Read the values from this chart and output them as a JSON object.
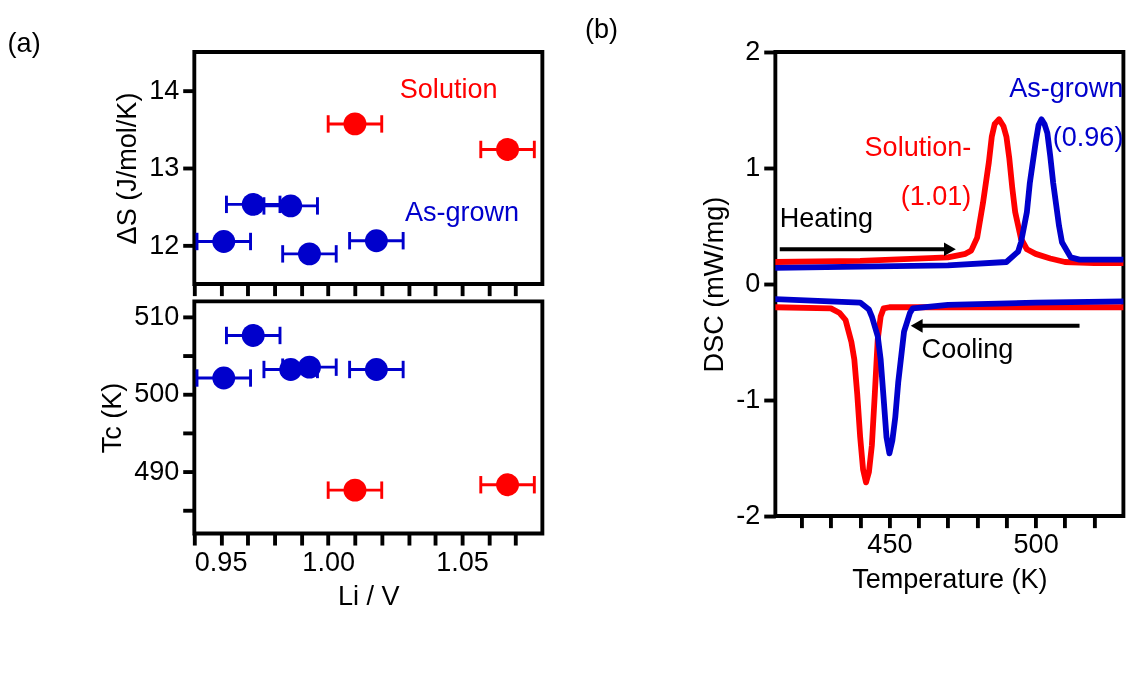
{
  "chart_data": [
    {
      "type": "scatter",
      "ylabel": "ΔS (J/mol/K)",
      "annotations": [
        "(a)"
      ],
      "marker": "circle",
      "legend": false,
      "grid": false,
      "tick_labels": "y",
      "xlim": [
        0.95,
        1.08
      ],
      "xticks": [
        0.95,
        0.96,
        0.97,
        0.98,
        0.99,
        1.0,
        1.01,
        1.02,
        1.03,
        1.04,
        1.05,
        1.06,
        1.07
      ],
      "ylim": [
        11.5,
        14.5
      ],
      "yticks": [
        12,
        13,
        14
      ],
      "series": [
        {
          "name": "Solution",
          "color": "#ff0000",
          "x": [
            1.01,
            1.067
          ],
          "values": [
            13.57,
            13.24
          ],
          "xerrors": [
            0.01,
            0.01
          ]
        },
        {
          "name": "As-grown",
          "color": "#0000cc",
          "x": [
            0.961,
            0.972,
            0.986,
            0.993,
            1.018
          ],
          "values": [
            12.05,
            12.53,
            12.51,
            11.89,
            12.06
          ],
          "xerrors": [
            0.01,
            0.01,
            0.01,
            0.01,
            0.01
          ]
        }
      ]
    },
    {
      "type": "scatter",
      "xlabel": "Li / V",
      "ylabel": "Tc (K)",
      "marker": "circle",
      "legend": false,
      "grid": false,
      "xlim": [
        0.95,
        1.08
      ],
      "xticks": [
        {
          "value": 0.95,
          "label": "0.95"
        },
        {
          "value": 0.96,
          "label": null
        },
        {
          "value": 0.97,
          "label": null
        },
        {
          "value": 0.98,
          "label": null
        },
        {
          "value": 0.99,
          "label": null
        },
        {
          "value": 1.0,
          "label": "1.00"
        },
        {
          "value": 1.01,
          "label": null
        },
        {
          "value": 1.02,
          "label": null
        },
        {
          "value": 1.03,
          "label": null
        },
        {
          "value": 1.04,
          "label": null
        },
        {
          "value": 1.05,
          "label": "1.05"
        },
        {
          "value": 1.06,
          "label": null
        },
        {
          "value": 1.07,
          "label": null
        }
      ],
      "ylim": [
        482,
        512
      ],
      "yticks": [
        {
          "value": 485,
          "label": null
        },
        490,
        {
          "value": 495,
          "label": null
        },
        500,
        {
          "value": 505,
          "label": null
        },
        510
      ],
      "series": [
        {
          "color": "#ff0000",
          "x": [
            1.01,
            1.067
          ],
          "values": [
            487.6,
            488.3
          ],
          "xerrors": [
            0.01,
            0.01
          ]
        },
        {
          "color": "#0000cc",
          "x": [
            0.961,
            0.972,
            0.986,
            0.993,
            1.018
          ],
          "values": [
            502.1,
            507.6,
            503.2,
            503.5,
            503.2
          ],
          "xerrors": [
            0.01,
            0.01,
            0.01,
            0.01,
            0.01
          ]
        }
      ]
    },
    {
      "type": "line",
      "xlabel": "Temperature (K)",
      "ylabel": "DSC (mW/mg)",
      "annotations": [
        "(b)",
        "Heating",
        "Cooling"
      ],
      "legend": false,
      "grid": false,
      "line_style": "solid",
      "marker": "none",
      "xlim": [
        411,
        530
      ],
      "xticks": [
        {
          "value": 420,
          "label": null
        },
        {
          "value": 430,
          "label": null
        },
        {
          "value": 440,
          "label": null
        },
        450,
        {
          "value": 460,
          "label": null
        },
        {
          "value": 470,
          "label": null
        },
        {
          "value": 480,
          "label": null
        },
        {
          "value": 490,
          "label": null
        },
        500,
        {
          "value": 510,
          "label": null
        },
        {
          "value": 520,
          "label": null
        }
      ],
      "ylim": [
        -2,
        2
      ],
      "yticks": [
        -2,
        -1,
        0,
        1,
        2
      ],
      "series": [
        {
          "name": "Solution-(1.01)",
          "color": "#ff0000",
          "x": [
            411,
            440,
            470,
            476,
            478,
            480,
            482,
            484,
            485,
            486,
            487.5,
            489,
            490,
            491,
            492,
            493,
            495,
            497,
            500,
            505,
            510,
            520,
            530
          ],
          "values": [
            0.19,
            0.2,
            0.23,
            0.26,
            0.29,
            0.4,
            0.7,
            1.05,
            1.27,
            1.38,
            1.42,
            1.36,
            1.27,
            1.08,
            0.83,
            0.62,
            0.39,
            0.3,
            0.26,
            0.22,
            0.19,
            0.18,
            0.18
          ]
        },
        {
          "name": "As-grown(0.96)",
          "color": "#0000cc",
          "x": [
            411,
            440,
            470,
            490,
            494,
            495,
            497,
            498,
            500,
            501,
            502,
            503,
            504,
            505,
            506,
            508,
            509,
            512,
            515,
            520,
            530
          ],
          "values": [
            0.14,
            0.15,
            0.16,
            0.19,
            0.28,
            0.36,
            0.62,
            0.87,
            1.22,
            1.37,
            1.42,
            1.38,
            1.3,
            1.1,
            0.87,
            0.5,
            0.36,
            0.23,
            0.21,
            0.21,
            0.21
          ]
        },
        {
          "color": "#ff0000",
          "x": [
            411,
            430,
            433,
            435,
            437,
            438,
            439,
            440,
            441,
            442,
            443,
            444,
            445,
            446,
            447,
            448,
            450,
            455,
            490,
            530
          ],
          "values": [
            -0.2,
            -0.21,
            -0.25,
            -0.31,
            -0.5,
            -0.65,
            -0.95,
            -1.32,
            -1.6,
            -1.71,
            -1.62,
            -1.39,
            -0.95,
            -0.48,
            -0.28,
            -0.21,
            -0.2,
            -0.2,
            -0.2,
            -0.2
          ]
        },
        {
          "color": "#0000cc",
          "x": [
            411,
            440,
            443,
            444,
            446,
            447,
            448,
            449,
            450,
            451,
            452,
            453,
            455,
            457,
            458,
            470,
            500,
            530
          ],
          "values": [
            -0.13,
            -0.16,
            -0.22,
            -0.28,
            -0.45,
            -0.65,
            -0.98,
            -1.32,
            -1.46,
            -1.35,
            -1.15,
            -0.85,
            -0.41,
            -0.25,
            -0.21,
            -0.18,
            -0.16,
            -0.15
          ]
        }
      ]
    }
  ]
}
